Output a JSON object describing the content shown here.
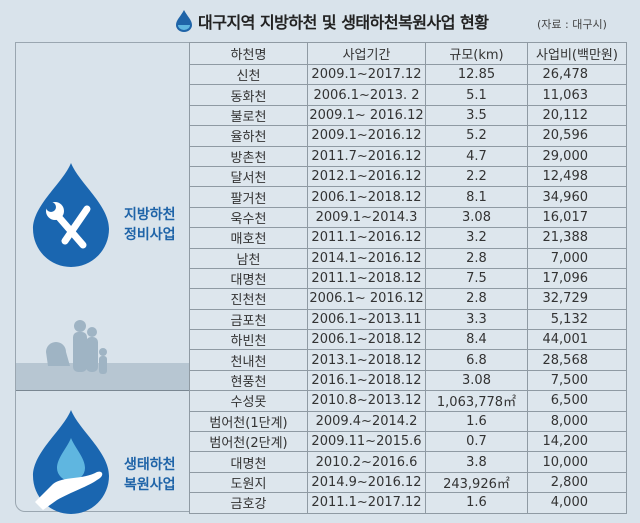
{
  "title": "대구지역 지방하천 및 생태하천복원사업 현황",
  "source": "(자료 : 대구시)",
  "sections": [
    {
      "label_line1": "지방하천",
      "label_line2": "정비사업",
      "icon": "tools-drop-icon"
    },
    {
      "label_line1": "생태하천",
      "label_line2": "복원사업",
      "icon": "water-hand-drop-icon"
    }
  ],
  "table": {
    "headers": [
      "하천명",
      "사업기간",
      "규모(km)",
      "사업비(백만원)"
    ],
    "rows": [
      [
        "신천",
        "2009.1~2017.12",
        "12.85",
        "26,478"
      ],
      [
        "동화천",
        "2006.1~2013. 2",
        "5.1",
        "11,063"
      ],
      [
        "불로천",
        "2009.1~ 2016.12",
        "3.5",
        "20,112"
      ],
      [
        "율하천",
        "2009.1~2016.12",
        "5.2",
        "20,596"
      ],
      [
        "방촌천",
        "2011.7~2016.12",
        "4.7",
        "29,000"
      ],
      [
        "달서천",
        "2012.1~2016.12",
        "2.2",
        "12,498"
      ],
      [
        "팔거천",
        "2006.1~2018.12",
        "8.1",
        "34,960"
      ],
      [
        "욱수천",
        "2009.1~2014.3",
        "3.08",
        "16,017"
      ],
      [
        "매호천",
        "2011.1~2016.12",
        "3.2",
        "21,388"
      ],
      [
        "남천",
        "2014.1~2016.12",
        "2.8",
        "7,000"
      ],
      [
        "대명천",
        "2011.1~2018.12",
        "7.5",
        "17,096"
      ],
      [
        "진천천",
        "2006.1~ 2016.12",
        "2.8",
        "32,729"
      ],
      [
        "금포천",
        "2006.1~2013.11",
        "3.3",
        "5,132"
      ],
      [
        "하빈천",
        "2006.1~2018.12",
        "8.4",
        "44,001"
      ],
      [
        "천내천",
        "2013.1~2018.12",
        "6.8",
        "28,568"
      ],
      [
        "현풍천",
        "2016.1~2018.12",
        "3.08",
        "7,500"
      ],
      [
        "수성못",
        "2010.8~2013.12",
        "1,063,778㎡",
        "6,500"
      ],
      [
        "범어천(1단계)",
        "2009.4~2014.2",
        "1.6",
        "8,000"
      ],
      [
        "범어천(2단계)",
        "2009.11~2015.6",
        "0.7",
        "14,200"
      ],
      [
        "대명천",
        "2010.2~2016.6",
        "3.8",
        "10,000"
      ],
      [
        "도원지",
        "2014.9~2016.12",
        "243,926㎡",
        "2,800"
      ],
      [
        "금호강",
        "2011.1~2017.12",
        "1.6",
        "4,000"
      ]
    ]
  },
  "colors": {
    "accent": "#1f64a8",
    "background": "#d9e3eb"
  }
}
